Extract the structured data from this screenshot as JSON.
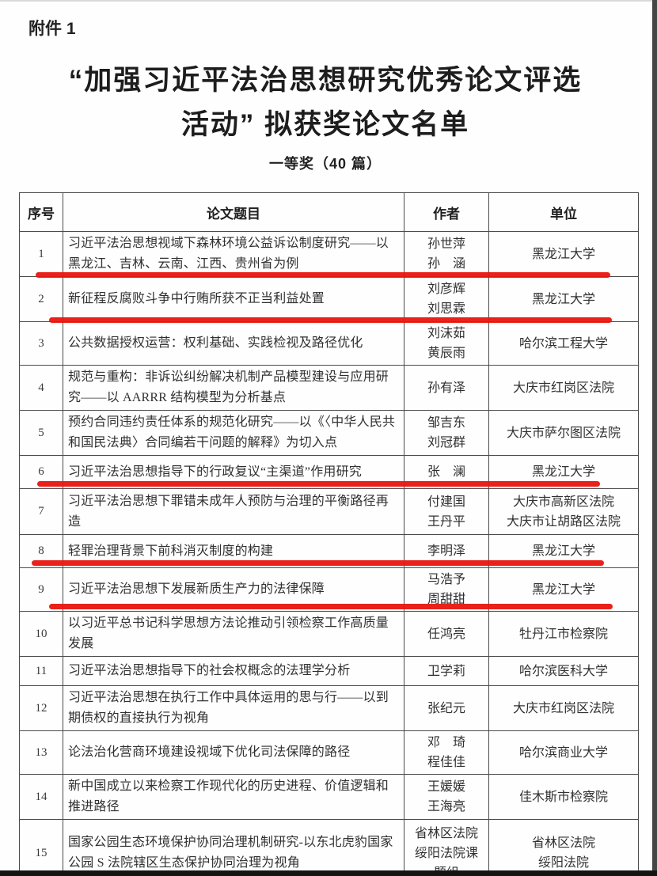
{
  "page": {
    "attachment_label": "附件 1",
    "title_line1": "“加强习近平法治思想研究优秀论文评选",
    "title_line2": "活动” 拟获奖论文名单",
    "subtitle": "一等奖（40 篇）"
  },
  "table": {
    "headers": [
      "序号",
      "论文题目",
      "作者",
      "单位"
    ],
    "rows": [
      {
        "no": "1",
        "title": "习近平法治思想视域下森林环境公益诉讼制度研究——以黑龙江、吉林、云南、江西、贵州省为例",
        "authors": [
          "孙世萍",
          "孙　涵"
        ],
        "unit": [
          "黑龙江大学"
        ]
      },
      {
        "no": "2",
        "title": "新征程反腐败斗争中行贿所获不正当利益处置",
        "authors": [
          "刘彦辉",
          "刘思霖"
        ],
        "unit": [
          "黑龙江大学"
        ]
      },
      {
        "no": "3",
        "title": "公共数据授权运营：权利基础、实践检视及路径优化",
        "authors": [
          "刘沫茹",
          "黄辰雨"
        ],
        "unit": [
          "哈尔滨工程大学"
        ]
      },
      {
        "no": "4",
        "title": "规范与重构：非诉讼纠纷解决机制产品模型建设与应用研究——以 AARRR 结构模型为分析基点",
        "authors": [
          "孙有泽"
        ],
        "unit": [
          "大庆市红岗区法院"
        ]
      },
      {
        "no": "5",
        "title": "预约合同违约责任体系的规范化研究——以《〈中华人民共和国民法典〉合同编若干问题的解释》为切入点",
        "authors": [
          "邹吉东",
          "刘冠群"
        ],
        "unit": [
          "大庆市萨尔图区法院"
        ]
      },
      {
        "no": "6",
        "title": "习近平法治思想指导下的行政复议“主渠道”作用研究",
        "authors": [
          "张　澜"
        ],
        "unit": [
          "黑龙江大学"
        ]
      },
      {
        "no": "7",
        "title": "习近平法治思想下罪错未成年人预防与治理的平衡路径再造",
        "authors": [
          "付建国",
          "王丹平"
        ],
        "unit": [
          "大庆市高新区法院",
          "大庆市让胡路区法院"
        ]
      },
      {
        "no": "8",
        "title": "轻罪治理背景下前科消灭制度的构建",
        "authors": [
          "李明泽"
        ],
        "unit": [
          "黑龙江大学"
        ]
      },
      {
        "no": "9",
        "title": "习近平法治思想下发展新质生产力的法律保障",
        "authors": [
          "马浩予",
          "周甜甜"
        ],
        "unit": [
          "黑龙江大学"
        ]
      },
      {
        "no": "10",
        "title": "以习近平总书记科学思想方法论推动引领检察工作高质量发展",
        "authors": [
          "任鸿亮"
        ],
        "unit": [
          "牡丹江市检察院"
        ]
      },
      {
        "no": "11",
        "title": "习近平法治思想指导下的社会权概念的法理学分析",
        "authors": [
          "卫学莉"
        ],
        "unit": [
          "哈尔滨医科大学"
        ]
      },
      {
        "no": "12",
        "title": "习近平法治思想在执行工作中具体运用的思与行——以到期债权的直接执行为视角",
        "authors": [
          "张纪元"
        ],
        "unit": [
          "大庆市红岗区法院"
        ]
      },
      {
        "no": "13",
        "title": "论法治化营商环境建设视域下优化司法保障的路径",
        "authors": [
          "邓　琦",
          "程佳佳"
        ],
        "unit": [
          "哈尔滨商业大学"
        ]
      },
      {
        "no": "14",
        "title": "新中国成立以来检察工作现代化的历史进程、价值逻辑和推进路径",
        "authors": [
          "王媛媛",
          "王海亮"
        ],
        "unit": [
          "佳木斯市检察院"
        ]
      },
      {
        "no": "15",
        "title": "国家公园生态环境保护协同治理机制研究-以东北虎豹国家公园 S 法院辖区生态保护协同治理为视角",
        "authors": [
          "省林区法院",
          "绥阳法院课",
          "题组"
        ],
        "unit": [
          "省林区法院",
          "绥阳法院"
        ]
      }
    ]
  },
  "annotation": {
    "marker_color": "#e8150e",
    "underlined_rows": [
      1,
      2,
      6,
      8,
      9
    ]
  }
}
